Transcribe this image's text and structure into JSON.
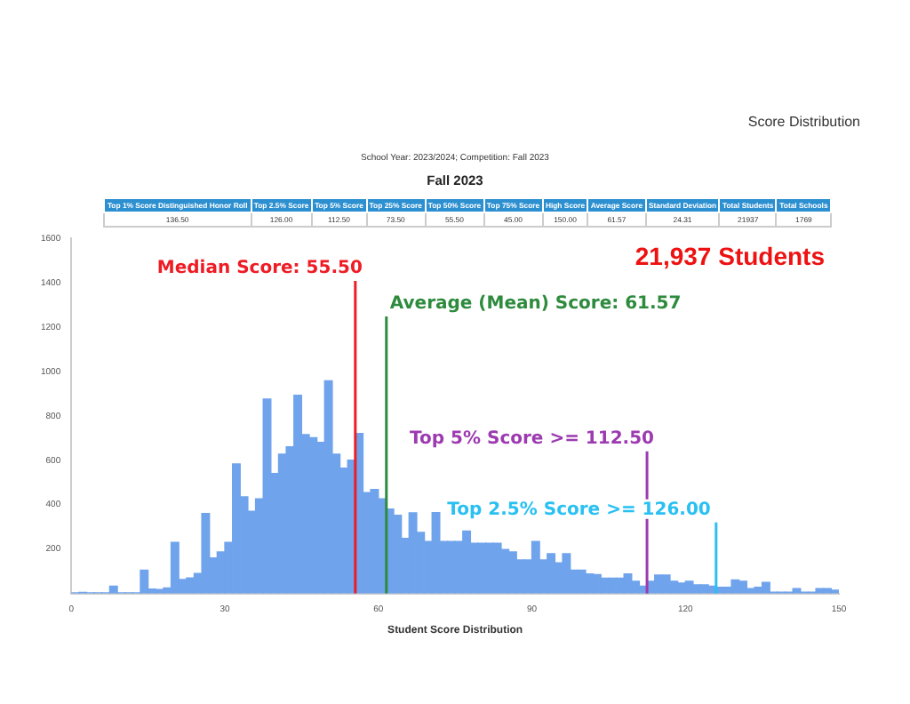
{
  "chart_data": {
    "type": "histogram",
    "title": "Fall 2023",
    "subtitle": "School Year: 2023/2024; Competition: Fall 2023",
    "xlabel": "Student Score Distribution",
    "bins": [
      0,
      1.5,
      3,
      4.5,
      6,
      7.5,
      9,
      10.5,
      12,
      13.5,
      15,
      16.5,
      18,
      19.5,
      21,
      22.5,
      24,
      25.5,
      27,
      28.5,
      30,
      31.5,
      33,
      34.5,
      36,
      37.5,
      39,
      40.5,
      42,
      43.5,
      45,
      46.5,
      48,
      49.5,
      51,
      52.5,
      54,
      55.5,
      57,
      58.5,
      60,
      61.5,
      63,
      64.5,
      66,
      67.5,
      69,
      70.5,
      72,
      73.5,
      75,
      76.5,
      78,
      79.5,
      81,
      82.5,
      84,
      85.5,
      87,
      88.5,
      90,
      91.5,
      93,
      94.5,
      96,
      97.5,
      99,
      100.5,
      102,
      103.5,
      105,
      106.5,
      108,
      109.5,
      111,
      112.5,
      114,
      115.5,
      117,
      118.5,
      120,
      121.5,
      123,
      124.5,
      126,
      127.5,
      129,
      130.5,
      132,
      133.5,
      135,
      136.5,
      138,
      139.5,
      141,
      142.5,
      144,
      145.5,
      147,
      148.5,
      150
    ],
    "values": [
      3,
      5,
      3,
      3,
      3,
      33,
      3,
      3,
      3,
      105,
      20,
      18,
      25,
      230,
      63,
      70,
      90,
      360,
      160,
      187,
      230,
      583,
      435,
      370,
      426,
      876,
      540,
      627,
      660,
      893,
      715,
      701,
      680,
      958,
      627,
      564,
      600,
      720,
      454,
      468,
      426,
      380,
      352,
      248,
      363,
      275,
      234,
      364,
      234,
      234,
      234,
      281,
      226,
      226,
      226,
      226,
      198,
      187,
      151,
      151,
      234,
      151,
      179,
      138,
      179,
      105,
      105,
      88,
      85,
      69,
      69,
      69,
      88,
      55,
      33,
      55,
      83,
      83,
      55,
      47,
      55,
      39,
      39,
      33,
      28,
      28,
      61,
      55,
      22,
      28,
      50,
      6,
      6,
      6,
      22,
      6,
      6,
      22,
      22,
      15
    ],
    "color": "#6fa3ec",
    "xlim": [
      0,
      150
    ],
    "xticks": [
      0,
      30,
      60,
      90,
      120,
      150
    ],
    "ylim": [
      0,
      1600
    ],
    "yticks": [
      200,
      400,
      600,
      800,
      1000,
      1200,
      1400,
      1600
    ],
    "grid": false,
    "legend": false,
    "ref_lines": [
      {
        "axis": "x",
        "value": 55.5,
        "label": "Median Score: 55.50",
        "color": "#ee1c25"
      },
      {
        "axis": "x",
        "value": 61.57,
        "label": "Average (Mean) Score: 61.57",
        "color": "#2e8b3e"
      },
      {
        "axis": "x",
        "value": 112.5,
        "label": "Top 5% Score >= 112.50",
        "color": "#9c3bb0"
      },
      {
        "axis": "x",
        "value": 126,
        "label": "Top 2.5% Score >= 126.00",
        "color": "#29c0f2"
      }
    ],
    "annotations": [
      "Score Distribution",
      "Top 1% Score Distinguished Honor Roll",
      "Top 2.5% Score",
      "Top 5% Score",
      "Top 25% Score",
      "Top 50% Score",
      "Top 75% Score",
      "High Score",
      "Average Score",
      "Standard Deviation",
      "Total Students",
      "Total Schools",
      "136.50",
      "126.00",
      "112.50",
      "73.50",
      "55.50",
      "45.00",
      "150.00",
      "61.57",
      "24.31",
      "21937",
      "1769",
      "21,937 Students"
    ]
  }
}
